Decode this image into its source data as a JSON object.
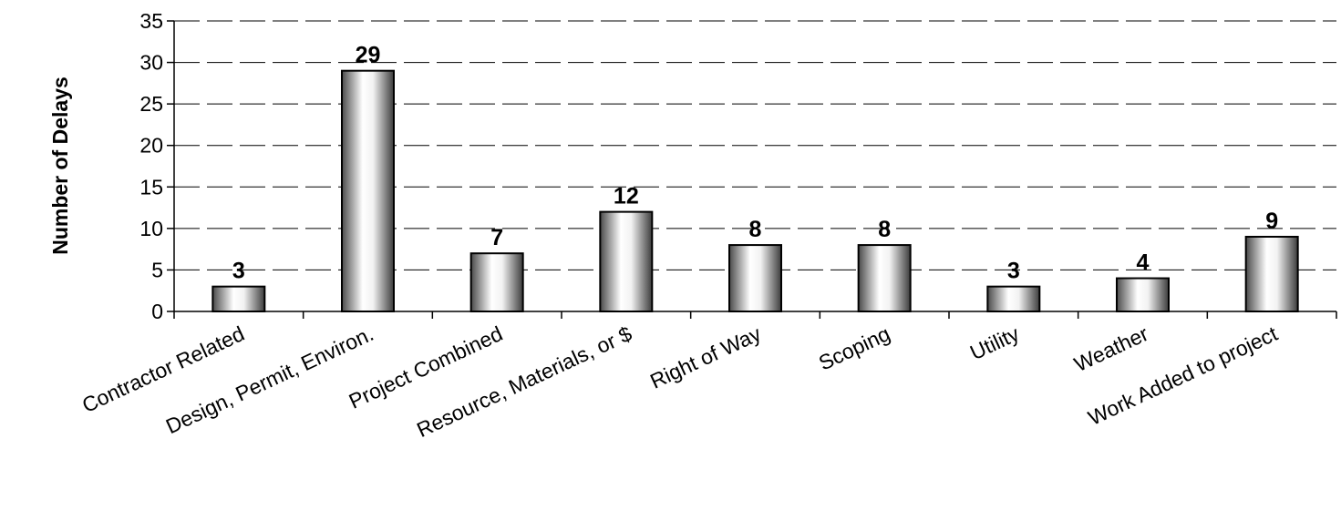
{
  "chart_data": {
    "type": "bar",
    "title": "",
    "xlabel": "",
    "ylabel": "Number of Delays",
    "ylim": [
      0,
      35
    ],
    "ytick_step": 5,
    "grid": "horizontal-dashed",
    "legend": "none",
    "categories": [
      "Contractor Related",
      "Design, Permit, Environ.",
      "Project Combined",
      "Resource, Materials, or $",
      "Right of Way",
      "Scoping",
      "Utility",
      "Weather",
      "Work Added to project"
    ],
    "values": [
      3,
      29,
      7,
      12,
      8,
      8,
      3,
      4,
      9
    ],
    "colors": {
      "bar_edge": "#000000",
      "bar_light": "#ffffff",
      "bar_dark": "#555555",
      "grid": "#000000",
      "axis": "#000000"
    }
  }
}
